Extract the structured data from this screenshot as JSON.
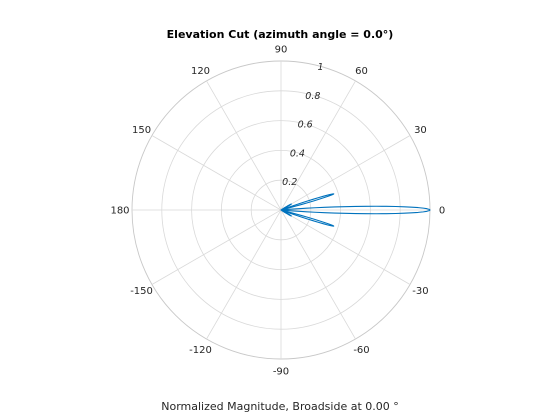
{
  "chart_data": {
    "type": "polar-line",
    "title": "Elevation Cut (azimuth angle = 0.0°)",
    "xlabel": "Normalized Magnitude, Broadside at 0.00 °",
    "angle_ticks": [
      0,
      30,
      60,
      90,
      120,
      150,
      180,
      -150,
      -120,
      -90,
      -60,
      -30
    ],
    "angle_tick_labels": [
      "0",
      "30",
      "60",
      "90",
      "120",
      "150",
      "180",
      "-150",
      "-120",
      "-90",
      "-60",
      "-30"
    ],
    "radial_ticks": [
      0.2,
      0.4,
      0.6,
      0.8,
      1
    ],
    "radial_tick_labels": [
      "0.2",
      "0.4",
      "0.6",
      "0.8",
      "1"
    ],
    "radial_label_angle_deg": 75,
    "rlim": [
      0,
      1
    ],
    "grid": true,
    "series": [
      {
        "color": "#0072BD",
        "lobes": [
          {
            "center_deg": 0,
            "peak": 1.0,
            "halfwidth_deg": 5.5
          },
          {
            "center_deg": 17,
            "peak": 0.37,
            "halfwidth_deg": 3.5
          },
          {
            "center_deg": -17,
            "peak": 0.37,
            "halfwidth_deg": 3.5
          },
          {
            "center_deg": 30,
            "peak": 0.08,
            "halfwidth_deg": 4.5
          },
          {
            "center_deg": -30,
            "peak": 0.08,
            "halfwidth_deg": 4.5
          }
        ]
      }
    ]
  }
}
